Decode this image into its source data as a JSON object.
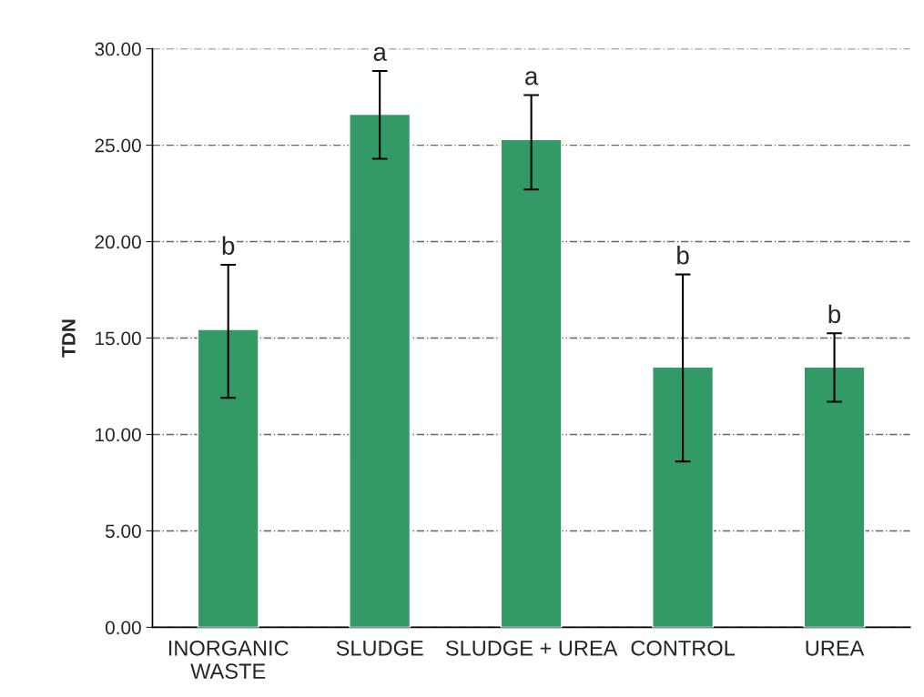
{
  "chart_data": {
    "type": "bar",
    "ylabel": "TDN",
    "categories": [
      "INORGANIC\nWASTE",
      "SLUDGE",
      "SLUDGE + UREA",
      "CONTROL",
      "UREA"
    ],
    "values": [
      15.45,
      26.6,
      25.3,
      13.5,
      13.5
    ],
    "errors": [
      [
        11.9,
        18.8
      ],
      [
        24.3,
        28.85
      ],
      [
        22.7,
        27.6
      ],
      [
        8.6,
        18.3
      ],
      [
        11.7,
        15.25
      ]
    ],
    "color": "#339966",
    "ylim": [
      0,
      30
    ],
    "yticks": [
      {
        "value": 0,
        "label": "0.00"
      },
      {
        "value": 5,
        "label": "5.00"
      },
      {
        "value": 10,
        "label": "10.00"
      },
      {
        "value": 15,
        "label": "15.00"
      },
      {
        "value": 20,
        "label": "20.00"
      },
      {
        "value": 25,
        "label": "25.00"
      },
      {
        "value": 30,
        "label": "30.00"
      }
    ],
    "grid": "y",
    "annotations": [
      "b",
      "a",
      "a",
      "b",
      "b"
    ]
  }
}
